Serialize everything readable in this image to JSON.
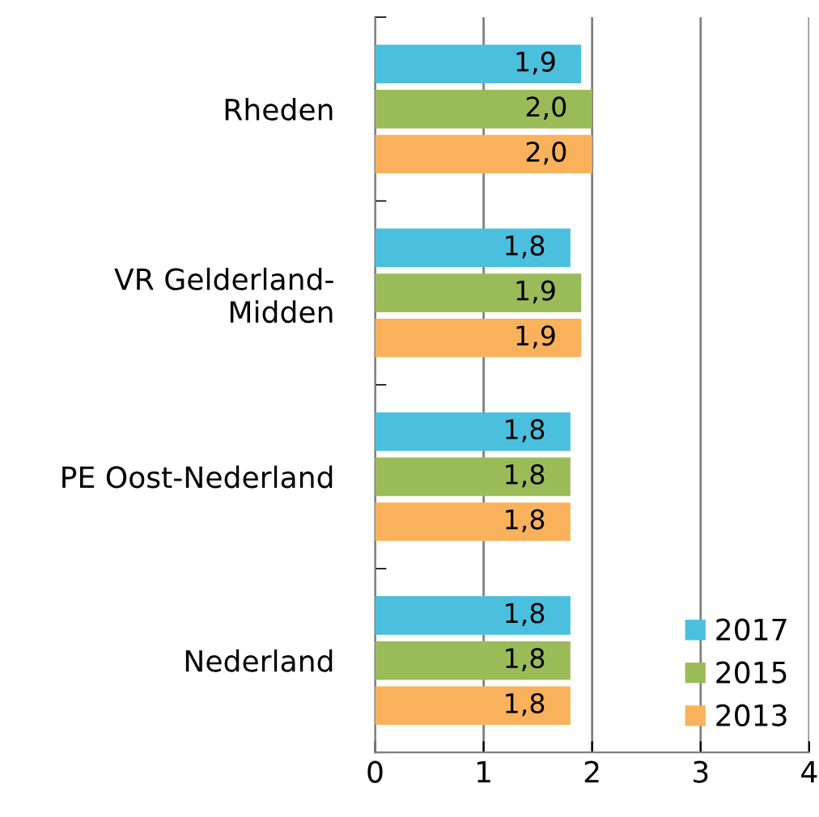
{
  "chart_data": {
    "type": "bar",
    "orientation": "horizontal",
    "categories": [
      "Rheden",
      "VR Gelderland-\nMidden",
      "PE Oost-Nederland",
      "Nederland"
    ],
    "series": [
      {
        "name": "2017",
        "color": "#4bc0de",
        "values": [
          1.9,
          1.8,
          1.8,
          1.8
        ],
        "value_labels": [
          "1,9",
          "1,8",
          "1,8",
          "1,8"
        ]
      },
      {
        "name": "2015",
        "color": "#9bbb59",
        "values": [
          2.0,
          1.9,
          1.8,
          1.8
        ],
        "value_labels": [
          "2,0",
          "1,9",
          "1,8",
          "1,8"
        ]
      },
      {
        "name": "2013",
        "color": "#f9b25b",
        "values": [
          2.0,
          1.9,
          1.8,
          1.8
        ],
        "value_labels": [
          "2,0",
          "1,9",
          "1,8",
          "1,8"
        ]
      }
    ],
    "xlim": [
      0,
      4
    ],
    "xticks": [
      0,
      1,
      2,
      3,
      4
    ],
    "grid": "x",
    "legend": "bottom right"
  }
}
